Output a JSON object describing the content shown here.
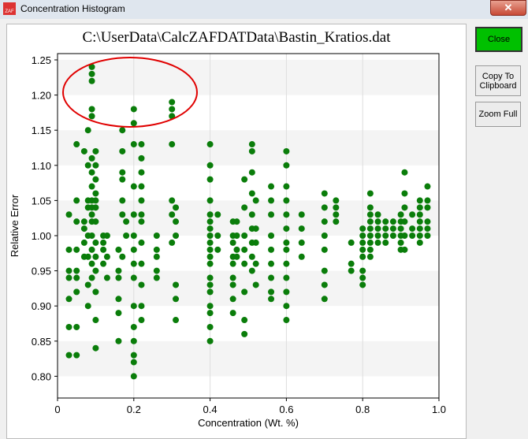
{
  "window": {
    "title": "Concentration Histogram",
    "close_glyph": "✕"
  },
  "buttons": {
    "close": "Close",
    "copy": "Copy To Clipboard",
    "zoom": "Zoom Full"
  },
  "colors": {
    "point": "#0a7d0a",
    "annotation": "#e00000",
    "close_button": "#00c000"
  },
  "chart_data": {
    "type": "scatter",
    "title": "C:\\UserData\\CalcZAFDATData\\Bastin_Kratios.dat",
    "xlabel": "Concentration (Wt. %)",
    "ylabel": "Relative Error",
    "xlim": [
      0,
      1.0
    ],
    "ylim": [
      0.775,
      1.26
    ],
    "xticks": [
      "0",
      "0.2",
      "0.4",
      "0.6",
      "0.8",
      "1.0"
    ],
    "yticks": [
      "0.80",
      "0.85",
      "0.90",
      "0.95",
      "1.00",
      "1.05",
      "1.10",
      "1.15",
      "1.20",
      "1.25"
    ],
    "grid": "alternating horizontal bands",
    "annotation": "red ellipse around outliers near x=0.1-0.3, y=1.15-1.25",
    "columns": [
      {
        "x": 0.03,
        "ys": [
          1.03,
          0.98,
          0.95,
          0.94,
          0.91,
          0.87,
          0.83
        ]
      },
      {
        "x": 0.05,
        "ys": [
          1.13,
          1.05,
          1.02,
          0.98,
          0.95,
          0.94,
          0.92,
          0.87,
          0.83
        ]
      },
      {
        "x": 0.07,
        "ys": [
          1.12,
          1.02,
          1.01,
          0.99,
          0.97
        ]
      },
      {
        "x": 0.08,
        "ys": [
          1.15,
          1.1,
          1.05,
          1.04,
          1.0,
          0.97,
          0.93,
          0.9
        ]
      },
      {
        "x": 0.09,
        "ys": [
          1.24,
          1.23,
          1.22,
          1.18,
          1.17,
          1.11,
          1.09,
          1.07,
          1.05,
          1.04,
          1.03,
          1.02,
          1.0,
          0.98,
          0.96,
          0.94
        ]
      },
      {
        "x": 0.1,
        "ys": [
          1.12,
          1.1,
          1.08,
          1.06,
          1.05,
          1.04,
          1.02,
          0.99,
          0.97,
          0.95,
          0.92,
          0.88,
          0.84
        ]
      },
      {
        "x": 0.12,
        "ys": [
          1.0,
          0.99,
          0.98,
          0.96
        ]
      },
      {
        "x": 0.13,
        "ys": [
          1.0,
          0.97,
          0.94
        ]
      },
      {
        "x": 0.16,
        "ys": [
          0.98,
          0.95,
          0.94,
          0.91,
          0.89,
          0.85
        ]
      },
      {
        "x": 0.17,
        "ys": [
          1.15,
          1.12,
          1.09,
          1.08,
          1.05,
          1.03,
          0.97
        ]
      },
      {
        "x": 0.18,
        "ys": [
          1.02,
          1.0
        ]
      },
      {
        "x": 0.2,
        "ys": [
          1.18,
          1.16,
          1.13,
          1.07,
          1.03,
          1.0,
          0.98,
          0.96,
          0.94,
          0.9,
          0.87,
          0.85,
          0.83,
          0.82,
          0.8
        ]
      },
      {
        "x": 0.22,
        "ys": [
          1.13,
          1.11,
          1.09,
          1.07,
          1.05,
          1.03,
          1.02,
          0.99,
          0.96,
          0.93,
          0.9,
          0.88
        ]
      },
      {
        "x": 0.26,
        "ys": [
          1.0,
          0.98,
          0.97,
          0.95,
          0.94
        ]
      },
      {
        "x": 0.3,
        "ys": [
          1.19,
          1.18,
          1.17,
          1.13,
          1.05,
          1.03,
          0.99
        ]
      },
      {
        "x": 0.31,
        "ys": [
          1.04,
          1.02,
          1.0,
          0.93,
          0.91,
          0.88
        ]
      },
      {
        "x": 0.4,
        "ys": [
          1.13,
          1.1,
          1.08,
          1.05,
          1.03,
          1.02,
          1.01,
          1.0,
          0.99,
          0.98,
          0.97,
          0.96,
          0.94,
          0.93,
          0.92,
          0.9,
          0.89,
          0.87,
          0.85
        ]
      },
      {
        "x": 0.42,
        "ys": [
          1.03,
          1.0,
          0.98
        ]
      },
      {
        "x": 0.46,
        "ys": [
          1.02,
          1.0,
          0.99,
          0.97,
          0.96,
          0.94,
          0.93,
          0.91,
          0.89
        ]
      },
      {
        "x": 0.47,
        "ys": [
          1.02,
          1.0,
          0.98,
          0.97
        ]
      },
      {
        "x": 0.49,
        "ys": [
          1.08,
          1.04,
          1.0,
          0.98,
          0.96,
          0.92,
          0.88,
          0.86
        ]
      },
      {
        "x": 0.51,
        "ys": [
          1.13,
          1.12,
          1.09,
          1.06,
          1.03,
          1.01,
          0.99,
          0.97,
          0.95
        ]
      },
      {
        "x": 0.52,
        "ys": [
          1.05,
          1.01,
          0.99,
          0.96,
          0.93
        ]
      },
      {
        "x": 0.56,
        "ys": [
          1.07,
          1.05,
          1.03,
          1.0,
          0.98,
          0.96,
          0.94,
          0.92,
          0.91
        ]
      },
      {
        "x": 0.6,
        "ys": [
          1.12,
          1.1,
          1.07,
          1.05,
          1.03,
          1.01,
          0.99,
          0.98,
          0.96,
          0.94,
          0.92,
          0.9,
          0.88
        ]
      },
      {
        "x": 0.64,
        "ys": [
          1.03,
          1.01,
          0.99,
          0.97
        ]
      },
      {
        "x": 0.7,
        "ys": [
          1.06,
          1.04,
          1.02,
          1.0,
          0.98,
          0.95,
          0.93,
          0.91
        ]
      },
      {
        "x": 0.73,
        "ys": [
          1.05,
          1.04,
          1.03,
          1.02
        ]
      },
      {
        "x": 0.77,
        "ys": [
          0.99,
          0.96,
          0.95
        ]
      },
      {
        "x": 0.8,
        "ys": [
          1.01,
          1.0,
          0.99,
          0.98,
          0.97,
          0.95,
          0.94,
          0.93
        ]
      },
      {
        "x": 0.82,
        "ys": [
          1.06,
          1.04,
          1.03,
          1.02,
          1.01,
          1.0,
          0.99,
          0.98,
          0.97
        ]
      },
      {
        "x": 0.84,
        "ys": [
          1.03,
          1.02,
          1.01,
          1.0,
          0.99
        ]
      },
      {
        "x": 0.86,
        "ys": [
          1.02,
          1.01,
          1.0,
          0.99
        ]
      },
      {
        "x": 0.88,
        "ys": [
          1.02,
          1.01,
          1.0
        ]
      },
      {
        "x": 0.9,
        "ys": [
          1.03,
          1.02,
          1.01,
          1.0,
          0.99,
          0.98
        ]
      },
      {
        "x": 0.91,
        "ys": [
          1.09,
          1.06,
          1.04,
          1.02,
          1.0,
          0.98
        ]
      },
      {
        "x": 0.93,
        "ys": [
          1.03,
          1.01,
          1.0
        ]
      },
      {
        "x": 0.95,
        "ys": [
          1.05,
          1.04,
          1.03,
          1.02,
          1.01,
          1.0,
          0.99
        ]
      },
      {
        "x": 0.97,
        "ys": [
          1.07,
          1.05,
          1.04,
          1.02,
          1.01,
          1.0
        ]
      }
    ]
  }
}
